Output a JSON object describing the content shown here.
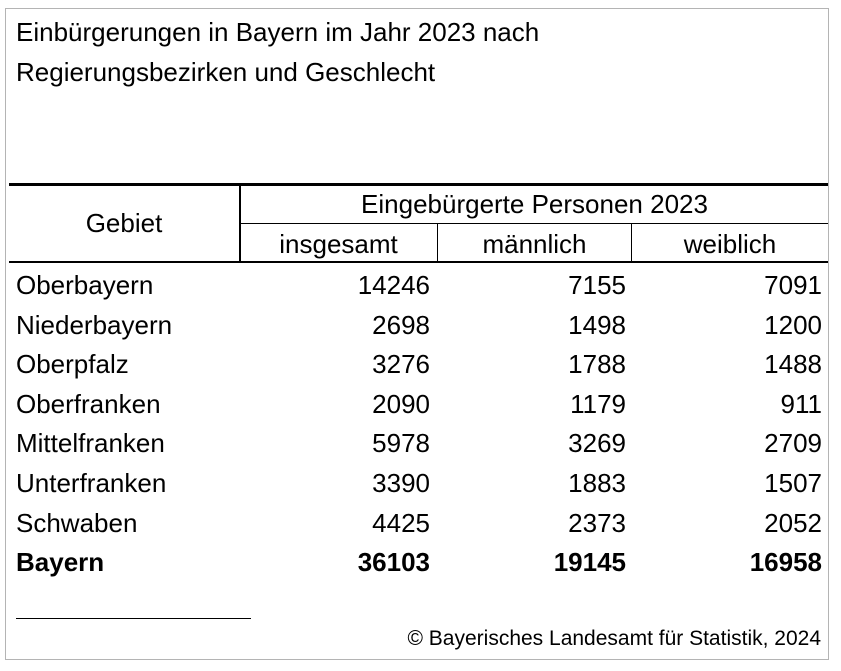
{
  "title": {
    "line1": "Einbürgerungen in Bayern im Jahr 2023 nach",
    "line2": "Regierungsbezirken und Geschlecht"
  },
  "table": {
    "header": {
      "gebiet": "Gebiet",
      "group": "Eingebürgerte Personen 2023",
      "columns": [
        "insgesamt",
        "männlich",
        "weiblich"
      ]
    },
    "rows": [
      {
        "name": "Oberbayern",
        "insgesamt": "14246",
        "maennlich": "7155",
        "weiblich": "7091"
      },
      {
        "name": "Niederbayern",
        "insgesamt": "2698",
        "maennlich": "1498",
        "weiblich": "1200"
      },
      {
        "name": "Oberpfalz",
        "insgesamt": "3276",
        "maennlich": "1788",
        "weiblich": "1488"
      },
      {
        "name": "Oberfranken",
        "insgesamt": "2090",
        "maennlich": "1179",
        "weiblich": "911"
      },
      {
        "name": "Mittelfranken",
        "insgesamt": "5978",
        "maennlich": "3269",
        "weiblich": "2709"
      },
      {
        "name": "Unterfranken",
        "insgesamt": "3390",
        "maennlich": "1883",
        "weiblich": "1507"
      },
      {
        "name": "Schwaben",
        "insgesamt": "4425",
        "maennlich": "2373",
        "weiblich": "2052"
      }
    ],
    "total": {
      "name": "Bayern",
      "insgesamt": "36103",
      "maennlich": "19145",
      "weiblich": "16958"
    }
  },
  "source": "© Bayerisches Landesamt für Statistik, 2024"
}
